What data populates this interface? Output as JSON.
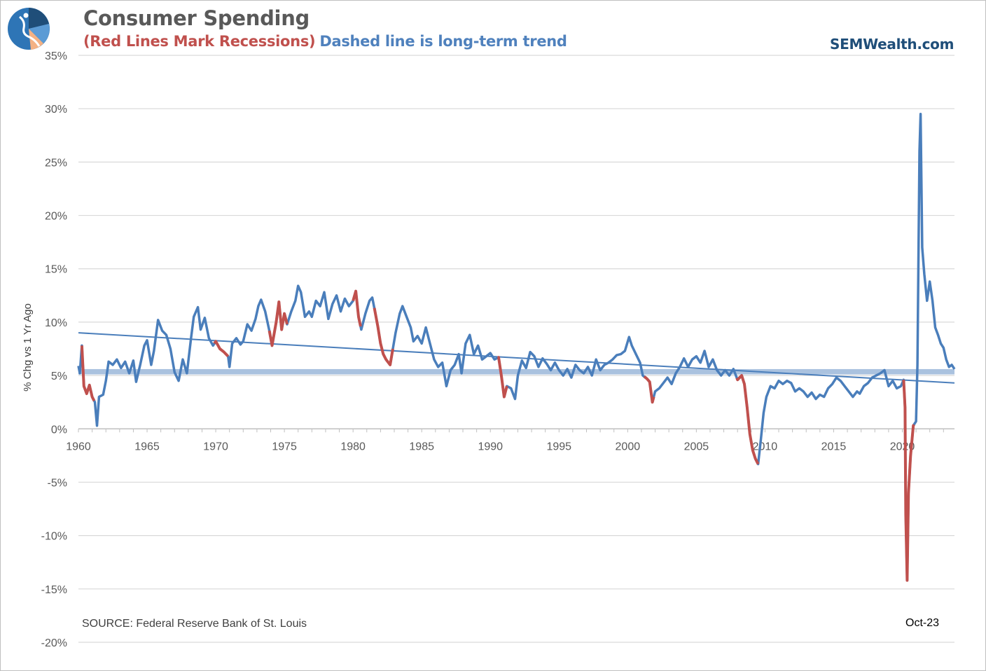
{
  "header": {
    "title": "Consumer Spending",
    "subtitle_red": "(Red Lines Mark Recessions)",
    "subtitle_blue": "Dashed line is long-term trend",
    "brand": "SEMWealth.com"
  },
  "logo": {
    "icon": "semwealth-logo-icon",
    "colors": [
      "#1f4e79",
      "#2e75b6",
      "#5b9bd5",
      "#f4b183"
    ]
  },
  "footer": {
    "source": "SOURCE:  Federal Reserve Bank of St. Louis",
    "date": "Oct-23"
  },
  "colors": {
    "series": "#4a7ebb",
    "recession": "#c0504d",
    "trend": "#4a7ebb",
    "band": "#9bb7d9",
    "grid": "#d9d9d9",
    "axis": "#bfbfbf"
  },
  "chart_data": {
    "type": "line",
    "title": "Consumer Spending",
    "ylabel": "% Chg vs 1 Yr Ago",
    "xlabel": "",
    "xlim": [
      1960,
      2023.8
    ],
    "ylim": [
      -20,
      35
    ],
    "yticks": [
      -20,
      -15,
      -10,
      -5,
      0,
      5,
      10,
      15,
      20,
      25,
      30,
      35
    ],
    "ytick_labels": [
      "-20%",
      "-15%",
      "-10%",
      "-5%",
      "0%",
      "5%",
      "10%",
      "15%",
      "20%",
      "25%",
      "30%",
      "35%"
    ],
    "xticks": [
      1960,
      1965,
      1970,
      1975,
      1980,
      1985,
      1990,
      1995,
      2000,
      2005,
      2010,
      2015,
      2020
    ],
    "grid": true,
    "band": [
      5.1,
      5.6
    ],
    "trend": {
      "x": [
        1960,
        2023.8
      ],
      "y": [
        9.0,
        4.3
      ]
    },
    "series": [
      {
        "values": [
          [
            1960.0,
            5.9
          ],
          [
            1960.1,
            5.2
          ],
          [
            1960.25,
            7.8
          ],
          [
            1960.4,
            4.0
          ],
          [
            1960.6,
            3.3
          ],
          [
            1960.8,
            4.1
          ],
          [
            1961.0,
            3.0
          ],
          [
            1961.2,
            2.5
          ],
          [
            1961.35,
            0.3
          ],
          [
            1961.5,
            3.0
          ],
          [
            1961.8,
            3.2
          ],
          [
            1962.0,
            4.5
          ],
          [
            1962.2,
            6.3
          ],
          [
            1962.5,
            6.0
          ],
          [
            1962.8,
            6.5
          ],
          [
            1963.1,
            5.7
          ],
          [
            1963.4,
            6.3
          ],
          [
            1963.7,
            5.2
          ],
          [
            1964.0,
            6.4
          ],
          [
            1964.2,
            4.4
          ],
          [
            1964.5,
            6.0
          ],
          [
            1964.8,
            7.8
          ],
          [
            1965.0,
            8.3
          ],
          [
            1965.3,
            6.0
          ],
          [
            1965.5,
            7.3
          ],
          [
            1965.8,
            10.2
          ],
          [
            1966.1,
            9.2
          ],
          [
            1966.4,
            8.8
          ],
          [
            1966.7,
            7.5
          ],
          [
            1967.0,
            5.3
          ],
          [
            1967.3,
            4.5
          ],
          [
            1967.6,
            6.5
          ],
          [
            1967.9,
            5.2
          ],
          [
            1968.2,
            8.5
          ],
          [
            1968.4,
            10.5
          ],
          [
            1968.7,
            11.4
          ],
          [
            1968.9,
            9.3
          ],
          [
            1969.2,
            10.4
          ],
          [
            1969.5,
            8.5
          ],
          [
            1969.8,
            7.8
          ],
          [
            1970.0,
            8.2
          ],
          [
            1970.3,
            7.5
          ],
          [
            1970.6,
            7.2
          ],
          [
            1970.9,
            6.8
          ],
          [
            1971.0,
            5.8
          ],
          [
            1971.2,
            8.0
          ],
          [
            1971.5,
            8.5
          ],
          [
            1971.8,
            7.9
          ],
          [
            1972.0,
            8.2
          ],
          [
            1972.3,
            9.8
          ],
          [
            1972.6,
            9.2
          ],
          [
            1972.9,
            10.3
          ],
          [
            1973.1,
            11.5
          ],
          [
            1973.3,
            12.1
          ],
          [
            1973.6,
            11.0
          ],
          [
            1973.9,
            9.2
          ],
          [
            1974.1,
            7.8
          ],
          [
            1974.4,
            10.0
          ],
          [
            1974.6,
            11.9
          ],
          [
            1974.8,
            9.3
          ],
          [
            1975.0,
            10.8
          ],
          [
            1975.2,
            9.8
          ],
          [
            1975.5,
            11.0
          ],
          [
            1975.8,
            12.0
          ],
          [
            1976.0,
            13.4
          ],
          [
            1976.2,
            12.8
          ],
          [
            1976.5,
            10.5
          ],
          [
            1976.8,
            11.0
          ],
          [
            1977.0,
            10.5
          ],
          [
            1977.3,
            12.0
          ],
          [
            1977.6,
            11.5
          ],
          [
            1977.9,
            12.8
          ],
          [
            1978.2,
            10.3
          ],
          [
            1978.5,
            11.7
          ],
          [
            1978.8,
            12.5
          ],
          [
            1979.1,
            11.0
          ],
          [
            1979.4,
            12.2
          ],
          [
            1979.7,
            11.5
          ],
          [
            1980.0,
            12.0
          ],
          [
            1980.2,
            12.9
          ],
          [
            1980.4,
            10.5
          ],
          [
            1980.6,
            9.3
          ],
          [
            1980.9,
            10.8
          ],
          [
            1981.2,
            12.0
          ],
          [
            1981.4,
            12.3
          ],
          [
            1981.6,
            11.0
          ],
          [
            1981.8,
            9.6
          ],
          [
            1982.0,
            8.0
          ],
          [
            1982.2,
            7.0
          ],
          [
            1982.4,
            6.5
          ],
          [
            1982.7,
            6.0
          ],
          [
            1982.9,
            7.5
          ],
          [
            1983.1,
            9.0
          ],
          [
            1983.4,
            10.8
          ],
          [
            1983.6,
            11.5
          ],
          [
            1983.9,
            10.5
          ],
          [
            1984.2,
            9.5
          ],
          [
            1984.4,
            8.2
          ],
          [
            1984.7,
            8.7
          ],
          [
            1985.0,
            8.0
          ],
          [
            1985.3,
            9.5
          ],
          [
            1985.6,
            8.0
          ],
          [
            1985.9,
            6.5
          ],
          [
            1986.2,
            5.8
          ],
          [
            1986.5,
            6.2
          ],
          [
            1986.8,
            4.0
          ],
          [
            1987.1,
            5.5
          ],
          [
            1987.4,
            6.0
          ],
          [
            1987.7,
            7.0
          ],
          [
            1987.9,
            5.2
          ],
          [
            1988.2,
            8.0
          ],
          [
            1988.5,
            8.8
          ],
          [
            1988.8,
            7.0
          ],
          [
            1989.1,
            7.8
          ],
          [
            1989.4,
            6.5
          ],
          [
            1989.7,
            6.8
          ],
          [
            1990.0,
            7.1
          ],
          [
            1990.3,
            6.5
          ],
          [
            1990.6,
            6.7
          ],
          [
            1990.8,
            5.0
          ],
          [
            1991.0,
            3.0
          ],
          [
            1991.2,
            4.0
          ],
          [
            1991.5,
            3.8
          ],
          [
            1991.8,
            2.8
          ],
          [
            1992.0,
            5.0
          ],
          [
            1992.3,
            6.4
          ],
          [
            1992.6,
            5.7
          ],
          [
            1992.9,
            7.2
          ],
          [
            1993.2,
            6.8
          ],
          [
            1993.5,
            5.8
          ],
          [
            1993.8,
            6.6
          ],
          [
            1994.1,
            6.1
          ],
          [
            1994.4,
            5.5
          ],
          [
            1994.7,
            6.2
          ],
          [
            1995.0,
            5.5
          ],
          [
            1995.3,
            5.0
          ],
          [
            1995.6,
            5.6
          ],
          [
            1995.9,
            4.8
          ],
          [
            1996.2,
            6.0
          ],
          [
            1996.5,
            5.5
          ],
          [
            1996.8,
            5.2
          ],
          [
            1997.1,
            5.8
          ],
          [
            1997.4,
            5.0
          ],
          [
            1997.7,
            6.5
          ],
          [
            1998.0,
            5.5
          ],
          [
            1998.3,
            6.0
          ],
          [
            1998.6,
            6.2
          ],
          [
            1998.9,
            6.5
          ],
          [
            1999.2,
            6.9
          ],
          [
            1999.5,
            7.0
          ],
          [
            1999.8,
            7.3
          ],
          [
            2000.1,
            8.6
          ],
          [
            2000.3,
            7.8
          ],
          [
            2000.6,
            7.0
          ],
          [
            2000.9,
            6.2
          ],
          [
            2001.1,
            5.0
          ],
          [
            2001.4,
            4.7
          ],
          [
            2001.6,
            4.4
          ],
          [
            2001.8,
            2.5
          ],
          [
            2002.0,
            3.5
          ],
          [
            2002.3,
            3.8
          ],
          [
            2002.6,
            4.3
          ],
          [
            2002.9,
            4.8
          ],
          [
            2003.2,
            4.2
          ],
          [
            2003.5,
            5.2
          ],
          [
            2003.8,
            5.8
          ],
          [
            2004.1,
            6.6
          ],
          [
            2004.4,
            5.8
          ],
          [
            2004.7,
            6.5
          ],
          [
            2005.0,
            6.8
          ],
          [
            2005.3,
            6.2
          ],
          [
            2005.6,
            7.3
          ],
          [
            2005.9,
            5.8
          ],
          [
            2006.2,
            6.5
          ],
          [
            2006.5,
            5.5
          ],
          [
            2006.8,
            5.0
          ],
          [
            2007.1,
            5.5
          ],
          [
            2007.4,
            5.0
          ],
          [
            2007.7,
            5.6
          ],
          [
            2008.0,
            4.6
          ],
          [
            2008.3,
            5.0
          ],
          [
            2008.5,
            4.2
          ],
          [
            2008.7,
            2.0
          ],
          [
            2008.9,
            -0.5
          ],
          [
            2009.1,
            -2.0
          ],
          [
            2009.3,
            -2.8
          ],
          [
            2009.5,
            -3.3
          ],
          [
            2009.7,
            -1.0
          ],
          [
            2009.9,
            1.5
          ],
          [
            2010.1,
            3.0
          ],
          [
            2010.4,
            4.0
          ],
          [
            2010.7,
            3.8
          ],
          [
            2011.0,
            4.5
          ],
          [
            2011.3,
            4.2
          ],
          [
            2011.6,
            4.5
          ],
          [
            2011.9,
            4.3
          ],
          [
            2012.2,
            3.5
          ],
          [
            2012.5,
            3.8
          ],
          [
            2012.8,
            3.5
          ],
          [
            2013.1,
            3.0
          ],
          [
            2013.4,
            3.4
          ],
          [
            2013.7,
            2.8
          ],
          [
            2014.0,
            3.2
          ],
          [
            2014.3,
            3.0
          ],
          [
            2014.6,
            3.8
          ],
          [
            2014.9,
            4.2
          ],
          [
            2015.2,
            4.8
          ],
          [
            2015.5,
            4.5
          ],
          [
            2015.8,
            4.0
          ],
          [
            2016.1,
            3.5
          ],
          [
            2016.4,
            3.0
          ],
          [
            2016.7,
            3.5
          ],
          [
            2016.9,
            3.3
          ],
          [
            2017.2,
            4.0
          ],
          [
            2017.5,
            4.3
          ],
          [
            2017.8,
            4.8
          ],
          [
            2018.1,
            5.0
          ],
          [
            2018.4,
            5.2
          ],
          [
            2018.7,
            5.5
          ],
          [
            2019.0,
            4.0
          ],
          [
            2019.3,
            4.5
          ],
          [
            2019.6,
            3.8
          ],
          [
            2019.9,
            4.0
          ],
          [
            2020.1,
            4.6
          ],
          [
            2020.2,
            2.0
          ],
          [
            2020.25,
            -8.0
          ],
          [
            2020.35,
            -14.2
          ],
          [
            2020.45,
            -6.0
          ],
          [
            2020.6,
            -2.5
          ],
          [
            2020.8,
            0.3
          ],
          [
            2021.0,
            0.7
          ],
          [
            2021.1,
            6.0
          ],
          [
            2021.25,
            26.0
          ],
          [
            2021.33,
            29.5
          ],
          [
            2021.45,
            17.0
          ],
          [
            2021.6,
            14.5
          ],
          [
            2021.8,
            12.0
          ],
          [
            2022.0,
            13.8
          ],
          [
            2022.2,
            12.0
          ],
          [
            2022.4,
            9.5
          ],
          [
            2022.6,
            8.8
          ],
          [
            2022.8,
            8.0
          ],
          [
            2023.0,
            7.6
          ],
          [
            2023.2,
            6.5
          ],
          [
            2023.4,
            5.8
          ],
          [
            2023.6,
            6.0
          ],
          [
            2023.8,
            5.6
          ]
        ]
      }
    ],
    "recessions": [
      [
        1960.25,
        1961.15
      ],
      [
        1969.9,
        1970.9
      ],
      [
        1973.9,
        1975.2
      ],
      [
        1980.0,
        1980.55
      ],
      [
        1981.55,
        1982.9
      ],
      [
        1990.55,
        1991.2
      ],
      [
        2001.2,
        2001.9
      ],
      [
        2007.95,
        2009.5
      ],
      [
        2020.1,
        2020.85
      ]
    ]
  }
}
